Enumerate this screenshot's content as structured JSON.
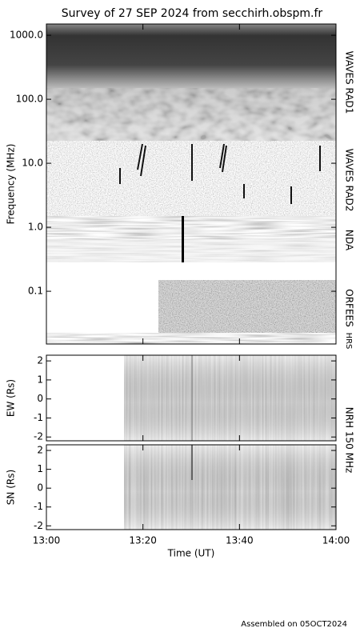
{
  "title": "Survey of 27 SEP 2024 from secchirh.obspm.fr",
  "chart_data": [
    {
      "type": "heatmap",
      "ylabel": "Frequency (MHz)",
      "log_y": true,
      "ylim": [
        0.015,
        1500
      ],
      "yticks": [
        0.1,
        {
          "value": 1,
          "label": "1.0"
        },
        {
          "value": 10,
          "label": "10.0"
        },
        {
          "value": 100,
          "label": "100.0"
        },
        {
          "value": 1000,
          "label": "1000.0"
        }
      ],
      "bands": [
        "WAVES RAD1",
        "WAVES RAD2",
        "NDA",
        "ORFEES",
        "HRS"
      ]
    },
    {
      "type": "heatmap",
      "ylabel": "EW (Rs)",
      "ylim": [
        -2.2,
        2.3
      ],
      "yticks": [
        -2,
        -1,
        0,
        1,
        2
      ]
    },
    {
      "type": "heatmap",
      "ylabel": "SN (Rs)",
      "ylim": [
        -2.2,
        2.3
      ],
      "yticks": [
        -2,
        -1,
        0,
        1,
        2
      ]
    }
  ],
  "nrh_label": "NRH 150 MHz",
  "xlabel": "Time (UT)",
  "xlim": [
    "13:00",
    "14:00"
  ],
  "xticks": [
    "13:00",
    "13:20",
    "13:40",
    "14:00"
  ],
  "footer": "Assembled on 05OCT2024"
}
